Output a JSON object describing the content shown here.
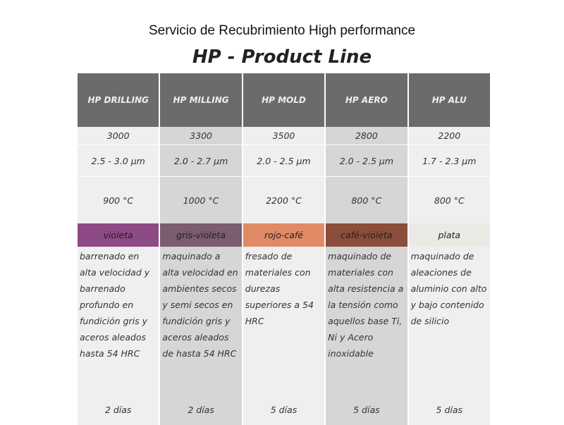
{
  "heading": "Servicio de Recubrimiento High performance",
  "title": "HP - Product Line",
  "products": [
    {
      "name": "HP DRILLING",
      "value": "3000",
      "thickness": "2.5 - 3.0 µm",
      "temperature": "900 °C",
      "color_name": "violeta",
      "color": "#8e4a85",
      "description": "barrenado en alta velocidad y barrenado profundo en fundición gris y aceros aleados hasta 54 HRC",
      "delivery": "2 días"
    },
    {
      "name": "HP MILLING",
      "value": "3300",
      "thickness": "2.0 - 2.7 µm",
      "temperature": "1000 °C",
      "color_name": "gris-violeta",
      "color": "#7a5d6e",
      "description": "maquinado a alta velocidad en ambientes secos y semi secos en fundición gris y aceros aleados de hasta 54 HRC",
      "delivery": "2 días"
    },
    {
      "name": "HP MOLD",
      "value": "3500",
      "thickness": "2.0 - 2.5 µm",
      "temperature": "2200 °C",
      "color_name": "rojo-café",
      "color": "#e08a66",
      "description": "fresado de materiales con durezas superiores a 54 HRC",
      "delivery": "5 días"
    },
    {
      "name": "HP AERO",
      "value": "2800",
      "thickness": "2.0 - 2.5 µm",
      "temperature": "800 °C",
      "color_name": "café-violeta",
      "color": "#8a4e3a",
      "description": "maquinado de materiales con alta resistencia a la tensión como aquellos base Ti, Ni y Acero inoxidable",
      "delivery": "5 días"
    },
    {
      "name": "HP ALU",
      "value": "2200",
      "thickness": "1.7 - 2.3 µm",
      "temperature": "800 °C",
      "color_name": "plata",
      "color": "#ebebe6",
      "description": "maquinado de aleaciones de aluminio con alto y bajo contenido de silicio",
      "delivery": "5 días"
    }
  ]
}
